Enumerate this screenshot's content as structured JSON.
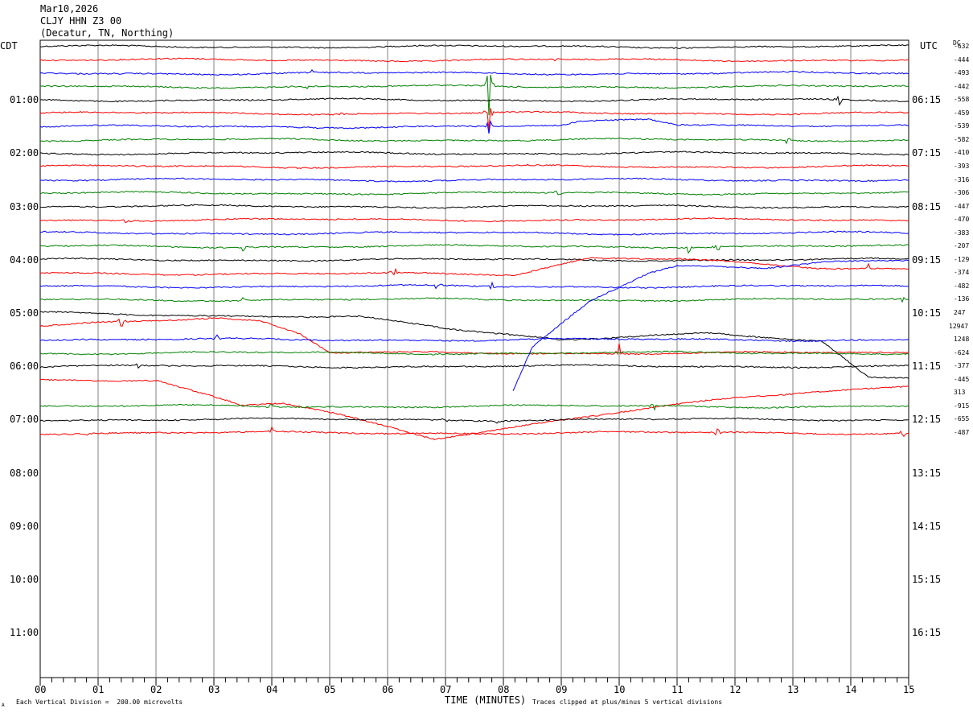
{
  "header": {
    "date": "Mar10,2026",
    "station": "CLJY HHN Z3 00",
    "location": "(Decatur, TN, Northing)"
  },
  "left_zone": "CDT",
  "right_zone": "UTC",
  "dc_label": "DC",
  "xlabel": "TIME (MINUTES)",
  "footer": {
    "scale_note": "Each Vertical Division =  200.00 microvolts",
    "clip_note": "Traces clipped at plus/minus 5 vertical divisions",
    "corner_mark": "A"
  },
  "colors": {
    "black": "#000000",
    "red": "#ff0000",
    "blue": "#0000ff",
    "green": "#008000",
    "grid": "#808080"
  },
  "chart_data": {
    "type": "line",
    "x_range": [
      0,
      15
    ],
    "x_ticks": [
      "00",
      "01",
      "02",
      "03",
      "04",
      "05",
      "06",
      "07",
      "08",
      "09",
      "10",
      "11",
      "12",
      "13",
      "14",
      "15"
    ],
    "trace_minutes": 15,
    "trace_color_cycle": [
      "black",
      "red",
      "blue",
      "green"
    ],
    "left_hour_labels": [
      "01:00",
      "02:00",
      "03:00",
      "04:00",
      "05:00",
      "06:00",
      "07:00",
      "08:00",
      "09:00",
      "10:00",
      "11:00"
    ],
    "right_hour_labels": [
      "06:15",
      "07:15",
      "08:15",
      "09:15",
      "10:15",
      "11:15",
      "12:15",
      "13:15",
      "14:15",
      "15:15",
      "16:15"
    ],
    "dc_offsets": [
      "-632",
      "-444",
      "-493",
      "-442",
      "-558",
      "-459",
      "-539",
      "-582",
      "-410",
      "-393",
      "-316",
      "-306",
      "-447",
      "-470",
      "-383",
      "-207",
      "-129",
      "-374",
      "-482",
      "-136",
      "247",
      "12947",
      "1248",
      "-624",
      "-377",
      "-445",
      "313",
      "-915",
      "-655",
      "-487"
    ],
    "events": [
      {
        "trace": 3,
        "minute": 7.75,
        "amp": 2.2
      },
      {
        "trace": 5,
        "minute": 7.75,
        "amp": 1.6
      },
      {
        "trace": 6,
        "minute": 7.75,
        "amp": 0.9
      },
      {
        "trace": 2,
        "minute": 4.7,
        "amp": 0.25
      },
      {
        "trace": 1,
        "minute": 8.9,
        "amp": 0.15
      },
      {
        "trace": 3,
        "minute": 4.6,
        "amp": 0.3
      },
      {
        "trace": 5,
        "minute": 5.2,
        "amp": 0.3
      },
      {
        "trace": 4,
        "minute": 13.8,
        "amp": 0.5
      },
      {
        "trace": 7,
        "minute": 12.9,
        "amp": 0.4
      },
      {
        "trace": 11,
        "minute": 8.95,
        "amp": 0.45
      },
      {
        "trace": 13,
        "minute": 1.5,
        "amp": 0.35
      },
      {
        "trace": 15,
        "minute": 11.2,
        "amp": 0.6
      },
      {
        "trace": 15,
        "minute": 11.7,
        "amp": 0.5
      },
      {
        "trace": 15,
        "minute": 3.5,
        "amp": 0.3
      },
      {
        "trace": 17,
        "minute": 6.1,
        "amp": 0.8
      },
      {
        "trace": 17,
        "minute": 14.3,
        "amp": 0.4
      },
      {
        "trace": 18,
        "minute": 6.85,
        "amp": 0.45
      },
      {
        "trace": 18,
        "minute": 7.8,
        "amp": 0.55
      },
      {
        "trace": 19,
        "minute": 3.5,
        "amp": 0.3
      },
      {
        "trace": 19,
        "minute": 14.9,
        "amp": 0.4
      },
      {
        "trace": 21,
        "minute": 1.4,
        "amp": 0.7
      },
      {
        "trace": 21,
        "minute": 10.0,
        "amp": 0.8
      },
      {
        "trace": 22,
        "minute": 3.05,
        "amp": 0.3
      },
      {
        "trace": 24,
        "minute": 1.7,
        "amp": 0.45
      },
      {
        "trace": 27,
        "minute": 4.0,
        "amp": 0.4
      },
      {
        "trace": 27,
        "minute": 10.6,
        "amp": 0.7
      },
      {
        "trace": 28,
        "minute": 7.0,
        "amp": 0.35
      },
      {
        "trace": 28,
        "minute": 7.9,
        "amp": 0.45
      },
      {
        "trace": 29,
        "minute": 0.85,
        "amp": 0.45
      },
      {
        "trace": 29,
        "minute": 4.0,
        "amp": 0.4
      },
      {
        "trace": 29,
        "minute": 11.7,
        "amp": 0.55
      },
      {
        "trace": 29,
        "minute": 14.9,
        "amp": 0.45
      }
    ],
    "drifts": [
      {
        "trace": 17,
        "shape": [
          [
            0,
            0
          ],
          [
            8.2,
            0.1
          ],
          [
            9.5,
            -1.2
          ],
          [
            11.0,
            -1.1
          ],
          [
            12.5,
            -0.6
          ],
          [
            13.5,
            -0.3
          ],
          [
            14.0,
            -0.3
          ],
          [
            15,
            -0.3
          ]
        ]
      },
      {
        "trace": 21,
        "shape": [
          [
            0,
            0
          ],
          [
            1.0,
            -0.3
          ],
          [
            2.0,
            -0.5
          ],
          [
            3.0,
            -0.7
          ],
          [
            3.8,
            -0.4
          ],
          [
            4.5,
            0.6
          ],
          [
            5.0,
            2.0
          ]
        ]
      },
      {
        "trace": 25,
        "shape": [
          [
            0,
            0
          ],
          [
            2.0,
            0
          ],
          [
            3.5,
            2.0
          ],
          [
            4.2,
            1.8
          ],
          [
            5.0,
            2.5
          ],
          [
            6.8,
            4.4
          ],
          [
            9.0,
            3.0
          ],
          [
            10.5,
            2.2
          ],
          [
            12.0,
            1.4
          ],
          [
            15,
            0.4
          ]
        ]
      },
      {
        "trace": 26,
        "shape": [
          [
            8.15,
            0
          ],
          [
            8.5,
            -3.5
          ],
          [
            9.5,
            -7
          ],
          [
            10.5,
            -9
          ],
          [
            11.0,
            -9.5
          ],
          [
            12.5,
            -9.3
          ],
          [
            13.5,
            -9.8
          ],
          [
            15,
            -10
          ]
        ]
      },
      {
        "trace": 20,
        "shape": [
          [
            0,
            0
          ],
          [
            5.5,
            0.3
          ],
          [
            7.0,
            1.2
          ],
          [
            9.0,
            2.0
          ],
          [
            10.5,
            1.6
          ],
          [
            11.5,
            1.5
          ],
          [
            13.5,
            2.2
          ],
          [
            14.3,
            4.9
          ],
          [
            15,
            4.9
          ]
        ]
      },
      {
        "trace": 6,
        "shape": [
          [
            0,
            0
          ],
          [
            9.0,
            0
          ],
          [
            9.3,
            -0.3
          ],
          [
            10.5,
            -0.6
          ],
          [
            11.0,
            -0.2
          ],
          [
            15,
            0
          ]
        ]
      }
    ]
  }
}
